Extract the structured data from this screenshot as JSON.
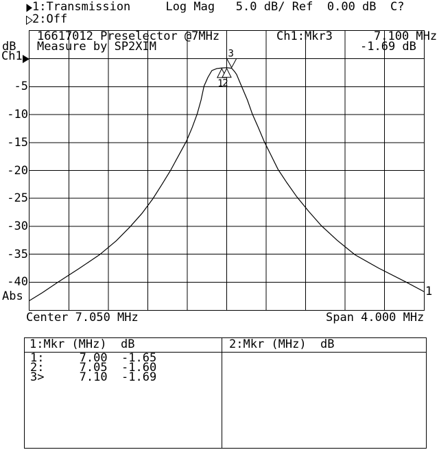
{
  "status_bar": {
    "line1_text": "1:Transmission     Log Mag   5.0 dB/ Ref  0.00 dB  C?",
    "line2_text": "2:Off"
  },
  "graph": {
    "title_line1": "16617012 Preselector @7MHz",
    "title_line2": "Measure by SP2XIM",
    "readout_channel": "Ch1:Mkr3",
    "readout_frequency": "7.100 MHz",
    "readout_level": "-1.69 dB",
    "y_unit": "dB",
    "y_channel": "Ch1",
    "y_labels": [
      "-5",
      "-10",
      "-15",
      "-20",
      "-25",
      "-30",
      "-35",
      "-40"
    ],
    "y_bottom_label": "Abs",
    "x_center": "Center 7.050 MHz",
    "x_span": "Span 4.000 MHz",
    "trace_number": "1"
  },
  "marker_table": {
    "left_header": "1:Mkr (MHz)  dB",
    "right_header": "2:Mkr (MHz)  dB",
    "rows": [
      {
        "marker": "1:",
        "freq_mhz": "7.00",
        "level_db": "-1.65"
      },
      {
        "marker": "2:",
        "freq_mhz": "7.05",
        "level_db": "-1.60"
      },
      {
        "marker": "3>",
        "freq_mhz": "7.10",
        "level_db": "-1.69"
      }
    ]
  },
  "chart_data": {
    "type": "line",
    "title": "16617012 Preselector @7MHz - Ch1 Transmission, Log Mag 5.0 dB/div, Ref 0.00 dB",
    "xlabel": "Frequency (MHz), Center 7.050 MHz, Span 4.000 MHz",
    "ylabel": "Log Mag (dB)",
    "xlim": [
      5.05,
      9.05
    ],
    "ylim": [
      -45,
      5
    ],
    "grid": true,
    "x_divisions": 10,
    "y_divisions": 10,
    "legend_position": "none",
    "series": [
      {
        "name": "Ch1 Transmission",
        "x": [
          5.05,
          5.18,
          5.34,
          5.55,
          5.76,
          5.93,
          6.07,
          6.19,
          6.3,
          6.39,
          6.48,
          6.56,
          6.64,
          6.7,
          6.75,
          6.79,
          6.82,
          6.86,
          6.9,
          6.95,
          7.0,
          7.05,
          7.1,
          7.13,
          7.15,
          7.2,
          7.26,
          7.31,
          7.37,
          7.43,
          7.5,
          7.57,
          7.66,
          7.76,
          7.88,
          8.01,
          8.17,
          8.35,
          8.59,
          8.87,
          9.05
        ],
        "y": [
          -43.3,
          -41.9,
          -40.0,
          -37.6,
          -35.1,
          -32.6,
          -30.1,
          -27.7,
          -25.1,
          -22.6,
          -20.0,
          -17.4,
          -14.8,
          -12.3,
          -9.9,
          -7.4,
          -4.9,
          -3.3,
          -2.1,
          -1.75,
          -1.65,
          -1.6,
          -1.69,
          -2.3,
          -2.8,
          -4.9,
          -7.4,
          -9.9,
          -12.3,
          -14.8,
          -17.3,
          -19.8,
          -22.2,
          -24.7,
          -27.3,
          -29.9,
          -32.5,
          -35.1,
          -37.5,
          -40.0,
          -41.7
        ]
      }
    ],
    "markers": [
      {
        "n": "1",
        "x": 7.0,
        "y": -1.65,
        "active": false
      },
      {
        "n": "2",
        "x": 7.05,
        "y": -1.6,
        "active": false
      },
      {
        "n": "3",
        "x": 7.1,
        "y": -1.69,
        "active": true
      }
    ]
  }
}
